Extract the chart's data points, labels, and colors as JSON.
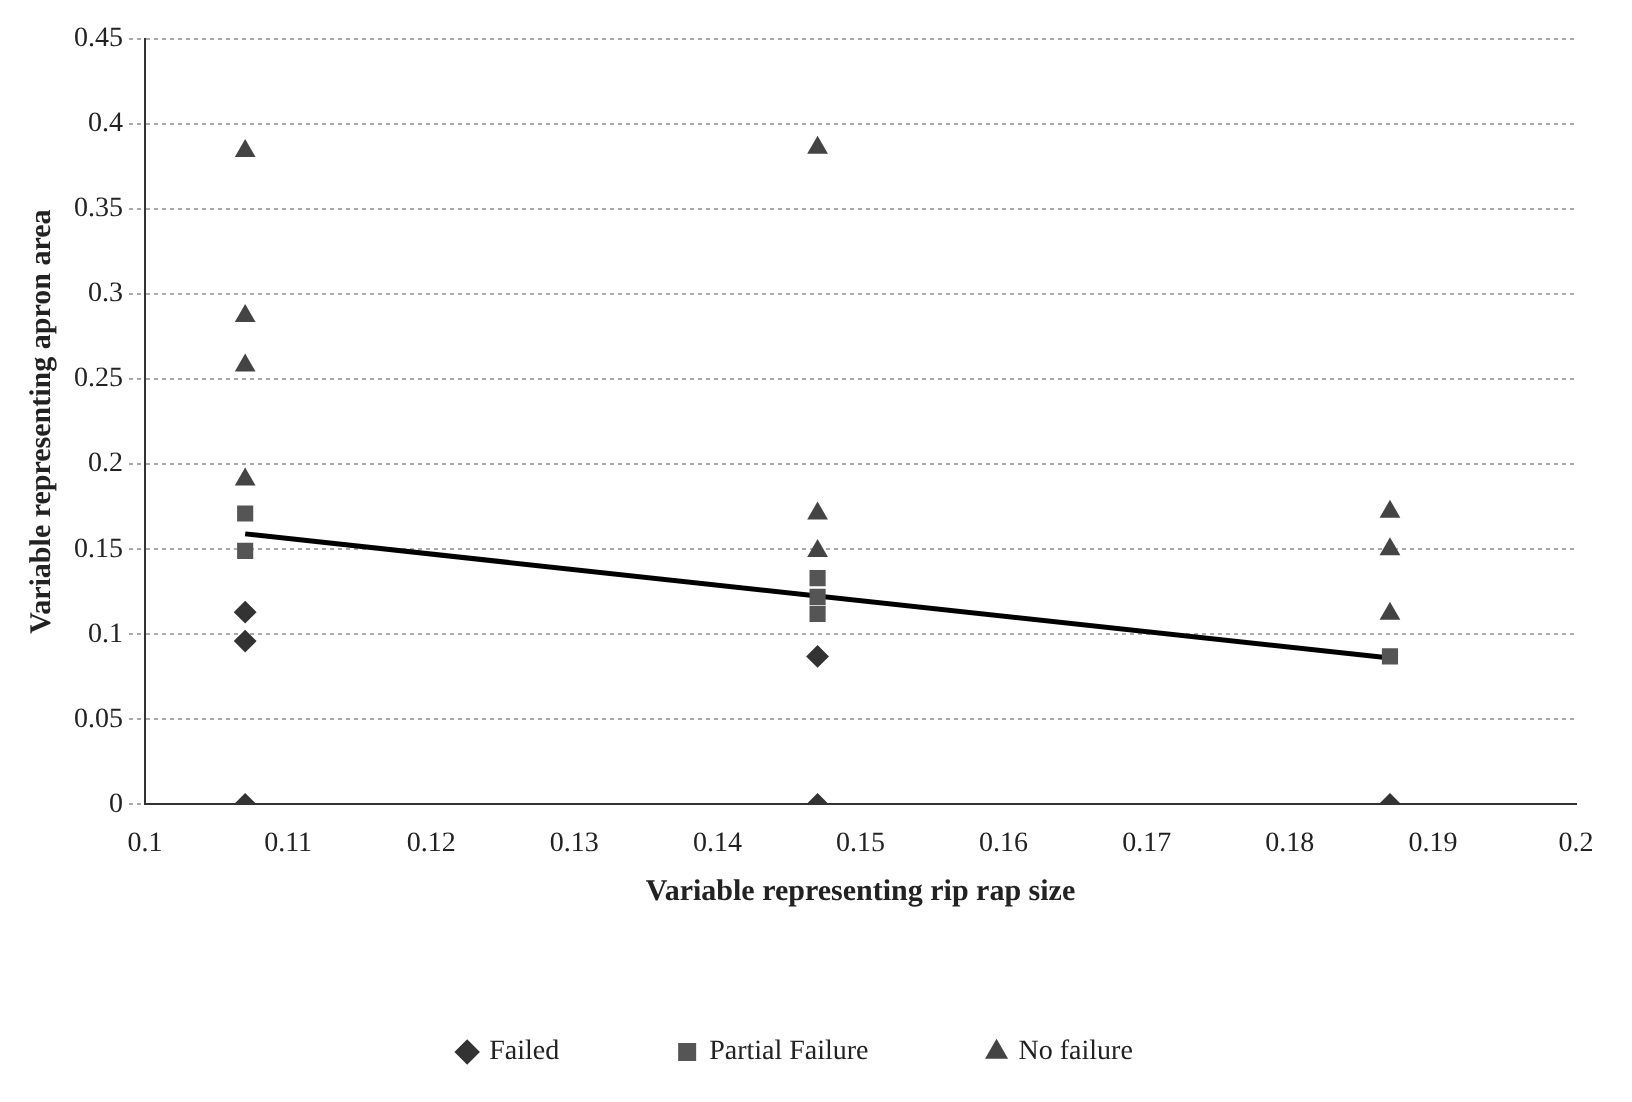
{
  "chart_data": {
    "type": "scatter",
    "xlabel": "Variable representing rip rap size",
    "ylabel": "Variable representing apron area",
    "xlim": [
      0.1,
      0.2
    ],
    "xticks": [
      0.1,
      0.11,
      0.12,
      0.13,
      0.14,
      0.15,
      0.16,
      0.17,
      0.18,
      0.19,
      0.2
    ],
    "ylim": [
      0,
      0.45
    ],
    "yticks": [
      0,
      0.05,
      0.1,
      0.15,
      0.2,
      0.25,
      0.3,
      0.35,
      0.4,
      0.45
    ],
    "grid": "y",
    "legend": "bottom",
    "series": [
      {
        "name": "Failed",
        "color": "#333333",
        "marker": "diamond",
        "x": [
          0.107,
          0.107,
          0.107,
          0.147,
          0.147,
          0.187
        ],
        "values": [
          0.113,
          0.096,
          0,
          0.087,
          0,
          0
        ]
      },
      {
        "name": "Partial Failure",
        "color": "#555555",
        "marker": "square",
        "x": [
          0.107,
          0.107,
          0.147,
          0.147,
          0.147,
          0.187
        ],
        "values": [
          0.171,
          0.149,
          0.133,
          0.122,
          0.112,
          0.087
        ]
      },
      {
        "name": "No failure",
        "color": "#444444",
        "marker": "triangle",
        "x": [
          0.107,
          0.107,
          0.107,
          0.107,
          0.147,
          0.147,
          0.147,
          0.187,
          0.187,
          0.187
        ],
        "values": [
          0.384,
          0.287,
          0.258,
          0.191,
          0.386,
          0.171,
          0.149,
          0.172,
          0.15,
          0.112
        ]
      },
      {
        "type": "line",
        "color": "#000000",
        "marker": "none",
        "x": [
          0.107,
          0.187
        ],
        "values": [
          0.159,
          0.086
        ]
      }
    ]
  }
}
